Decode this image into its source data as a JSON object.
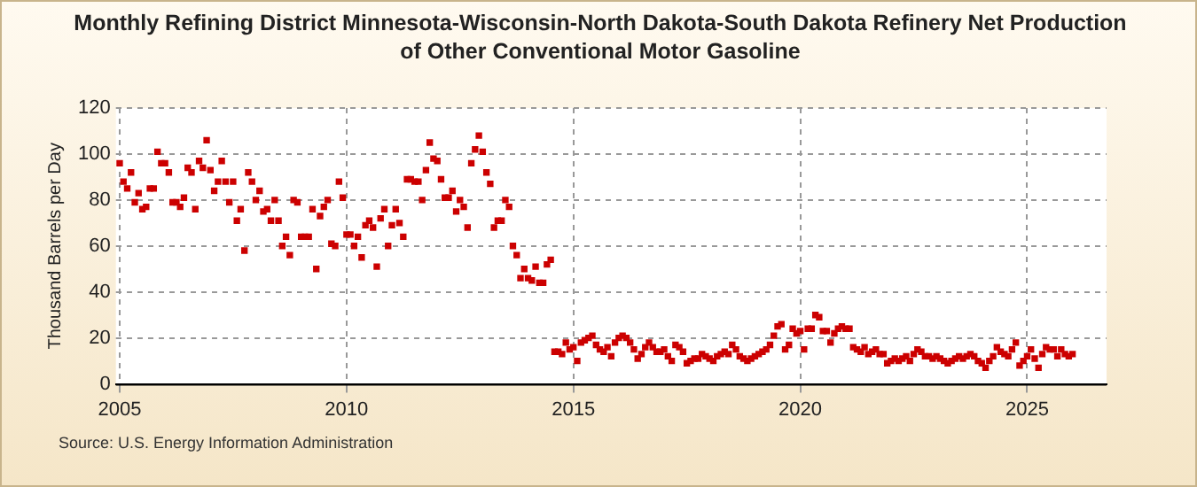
{
  "chart_data": {
    "type": "scatter",
    "title": "Monthly Refining District Minnesota-Wisconsin-North Dakota-South Dakota Refinery Net Production of Other Conventional Motor Gasoline",
    "ylabel": "Thousand Barrels per Day",
    "annotations": [
      "Source: U.S. Energy Information Administration"
    ],
    "xlim": [
      "2004-12",
      "2026-10"
    ],
    "xticks": [
      {
        "value": "2005",
        "label": "2005"
      },
      {
        "value": "2010",
        "label": "2010"
      },
      {
        "value": "2015",
        "label": "2015"
      },
      {
        "value": "2020",
        "label": "2020"
      },
      {
        "value": "2025",
        "label": "2025"
      }
    ],
    "ylim": [
      0,
      120
    ],
    "yticks": [
      0,
      20,
      40,
      60,
      80,
      100,
      120
    ],
    "grid": true,
    "legend": false,
    "marker": "square",
    "series": [
      {
        "color": "#cc0000",
        "x": [
          "2005-01",
          "2005-02",
          "2005-03",
          "2005-04",
          "2005-05",
          "2005-06",
          "2005-07",
          "2005-08",
          "2005-09",
          "2005-10",
          "2005-11",
          "2005-12",
          "2006-01",
          "2006-02",
          "2006-03",
          "2006-04",
          "2006-05",
          "2006-06",
          "2006-07",
          "2006-08",
          "2006-09",
          "2006-10",
          "2006-11",
          "2006-12",
          "2007-01",
          "2007-02",
          "2007-03",
          "2007-04",
          "2007-05",
          "2007-06",
          "2007-07",
          "2007-08",
          "2007-09",
          "2007-10",
          "2007-11",
          "2007-12",
          "2008-01",
          "2008-02",
          "2008-03",
          "2008-04",
          "2008-05",
          "2008-06",
          "2008-07",
          "2008-08",
          "2008-09",
          "2008-10",
          "2008-11",
          "2008-12",
          "2009-01",
          "2009-02",
          "2009-03",
          "2009-04",
          "2009-05",
          "2009-06",
          "2009-07",
          "2009-08",
          "2009-09",
          "2009-10",
          "2009-11",
          "2009-12",
          "2010-01",
          "2010-02",
          "2010-03",
          "2010-04",
          "2010-05",
          "2010-06",
          "2010-07",
          "2010-08",
          "2010-09",
          "2010-10",
          "2010-11",
          "2010-12",
          "2011-01",
          "2011-02",
          "2011-03",
          "2011-04",
          "2011-05",
          "2011-06",
          "2011-07",
          "2011-08",
          "2011-09",
          "2011-10",
          "2011-11",
          "2011-12",
          "2012-01",
          "2012-02",
          "2012-03",
          "2012-04",
          "2012-05",
          "2012-06",
          "2012-07",
          "2012-08",
          "2012-09",
          "2012-10",
          "2012-11",
          "2012-12",
          "2013-01",
          "2013-02",
          "2013-03",
          "2013-04",
          "2013-05",
          "2013-06",
          "2013-07",
          "2013-08",
          "2013-09",
          "2013-10",
          "2013-11",
          "2013-12",
          "2014-01",
          "2014-02",
          "2014-03",
          "2014-04",
          "2014-05",
          "2014-06",
          "2014-07",
          "2014-08",
          "2014-09",
          "2014-10",
          "2014-11",
          "2014-12",
          "2015-01",
          "2015-02",
          "2015-03",
          "2015-04",
          "2015-05",
          "2015-06",
          "2015-07",
          "2015-08",
          "2015-09",
          "2015-10",
          "2015-11",
          "2015-12",
          "2016-01",
          "2016-02",
          "2016-03",
          "2016-04",
          "2016-05",
          "2016-06",
          "2016-07",
          "2016-08",
          "2016-09",
          "2016-10",
          "2016-11",
          "2016-12",
          "2017-01",
          "2017-02",
          "2017-03",
          "2017-04",
          "2017-05",
          "2017-06",
          "2017-07",
          "2017-08",
          "2017-09",
          "2017-10",
          "2017-11",
          "2017-12",
          "2018-01",
          "2018-02",
          "2018-03",
          "2018-04",
          "2018-05",
          "2018-06",
          "2018-07",
          "2018-08",
          "2018-09",
          "2018-10",
          "2018-11",
          "2018-12",
          "2019-01",
          "2019-02",
          "2019-03",
          "2019-04",
          "2019-05",
          "2019-06",
          "2019-07",
          "2019-08",
          "2019-09",
          "2019-10",
          "2019-11",
          "2019-12",
          "2020-01",
          "2020-02",
          "2020-03",
          "2020-04",
          "2020-05",
          "2020-06",
          "2020-07",
          "2020-08",
          "2020-09",
          "2020-10",
          "2020-11",
          "2020-12",
          "2021-01",
          "2021-02",
          "2021-03",
          "2021-04",
          "2021-05",
          "2021-06",
          "2021-07",
          "2021-08",
          "2021-09",
          "2021-10",
          "2021-11",
          "2021-12",
          "2022-01",
          "2022-02",
          "2022-03",
          "2022-04",
          "2022-05",
          "2022-06",
          "2022-07",
          "2022-08",
          "2022-09",
          "2022-10",
          "2022-11",
          "2022-12",
          "2023-01",
          "2023-02",
          "2023-03",
          "2023-04",
          "2023-05",
          "2023-06",
          "2023-07",
          "2023-08",
          "2023-09",
          "2023-10",
          "2023-11",
          "2023-12",
          "2024-01",
          "2024-02",
          "2024-03",
          "2024-04",
          "2024-05",
          "2024-06",
          "2024-07",
          "2024-08",
          "2024-09",
          "2024-10",
          "2024-11",
          "2024-12",
          "2025-01",
          "2025-02",
          "2025-03",
          "2025-04",
          "2025-05",
          "2025-06",
          "2025-07",
          "2025-08",
          "2025-09",
          "2025-10",
          "2025-11",
          "2025-12",
          "2026-01"
        ],
        "values": [
          96,
          88,
          85,
          92,
          79,
          83,
          76,
          77,
          85,
          85,
          101,
          96,
          96,
          92,
          79,
          79,
          77,
          81,
          94,
          92,
          76,
          97,
          94,
          106,
          93,
          84,
          88,
          97,
          88,
          79,
          88,
          71,
          76,
          58,
          92,
          88,
          80,
          84,
          75,
          76,
          71,
          80,
          71,
          60,
          64,
          56,
          80,
          79,
          64,
          64,
          64,
          76,
          50,
          73,
          77,
          80,
          61,
          60,
          88,
          81,
          65,
          65,
          60,
          64,
          55,
          69,
          71,
          68,
          51,
          72,
          76,
          60,
          69,
          76,
          70,
          64,
          89,
          89,
          88,
          88,
          80,
          93,
          105,
          98,
          97,
          89,
          81,
          81,
          84,
          75,
          80,
          77,
          68,
          96,
          102,
          108,
          101,
          92,
          87,
          68,
          71,
          71,
          80,
          77,
          60,
          56,
          46,
          50,
          46,
          45,
          51,
          44,
          44,
          52,
          54,
          14,
          14,
          13,
          18,
          15,
          16,
          10,
          18,
          19,
          20,
          21,
          17,
          15,
          14,
          16,
          12,
          18,
          20,
          21,
          20,
          18,
          15,
          11,
          13,
          16,
          18,
          16,
          14,
          14,
          15,
          12,
          10,
          17,
          16,
          14,
          9,
          10,
          11,
          11,
          13,
          12,
          11,
          10,
          12,
          13,
          14,
          13,
          17,
          15,
          12,
          11,
          10,
          11,
          12,
          13,
          14,
          15,
          17,
          21,
          25,
          26,
          15,
          17,
          24,
          22,
          23,
          15,
          24,
          24,
          30,
          29,
          23,
          23,
          18,
          22,
          24,
          25,
          24,
          24,
          16,
          15,
          14,
          16,
          13,
          14,
          15,
          13,
          13,
          9,
          10,
          11,
          10,
          11,
          12,
          10,
          13,
          15,
          14,
          12,
          12,
          11,
          12,
          11,
          10,
          9,
          10,
          11,
          12,
          11,
          12,
          13,
          12,
          10,
          9,
          7,
          10,
          12,
          16,
          14,
          13,
          12,
          15,
          18,
          8,
          10,
          12,
          15,
          11,
          7,
          13,
          16,
          15,
          15,
          12,
          15,
          13,
          12,
          13
        ]
      }
    ]
  }
}
